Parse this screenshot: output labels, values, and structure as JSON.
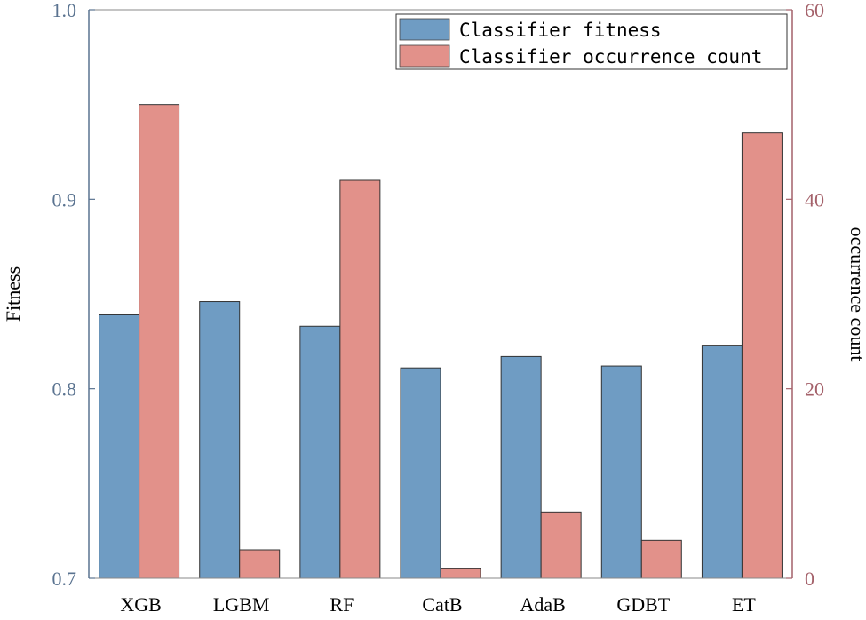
{
  "chart_data": {
    "type": "bar",
    "categories": [
      "XGB",
      "LGBM",
      "RF",
      "CatB",
      "AdaB",
      "GDBT",
      "ET"
    ],
    "series": [
      {
        "name": "Classifier fitness",
        "axis": "left",
        "color": "#6f9cc3",
        "values": [
          0.839,
          0.846,
          0.833,
          0.811,
          0.817,
          0.812,
          0.823
        ]
      },
      {
        "name": "Classifier occurrence count",
        "axis": "right",
        "color": "#e2918a",
        "values": [
          50,
          3,
          42,
          1,
          7,
          4,
          47
        ]
      }
    ],
    "ylabel": "Fitness",
    "ylabel_right": "occurrence count",
    "ylim": [
      0.7,
      1.0
    ],
    "ylim_right": [
      0,
      60
    ],
    "yticks": [
      "0.7",
      "0.8",
      "0.9",
      "1.0"
    ],
    "yticks_right": [
      "0",
      "20",
      "40",
      "60"
    ],
    "left_axis_color": "#5a7390",
    "right_axis_color": "#a4616a",
    "legend_position": "top-right",
    "grid": false
  }
}
